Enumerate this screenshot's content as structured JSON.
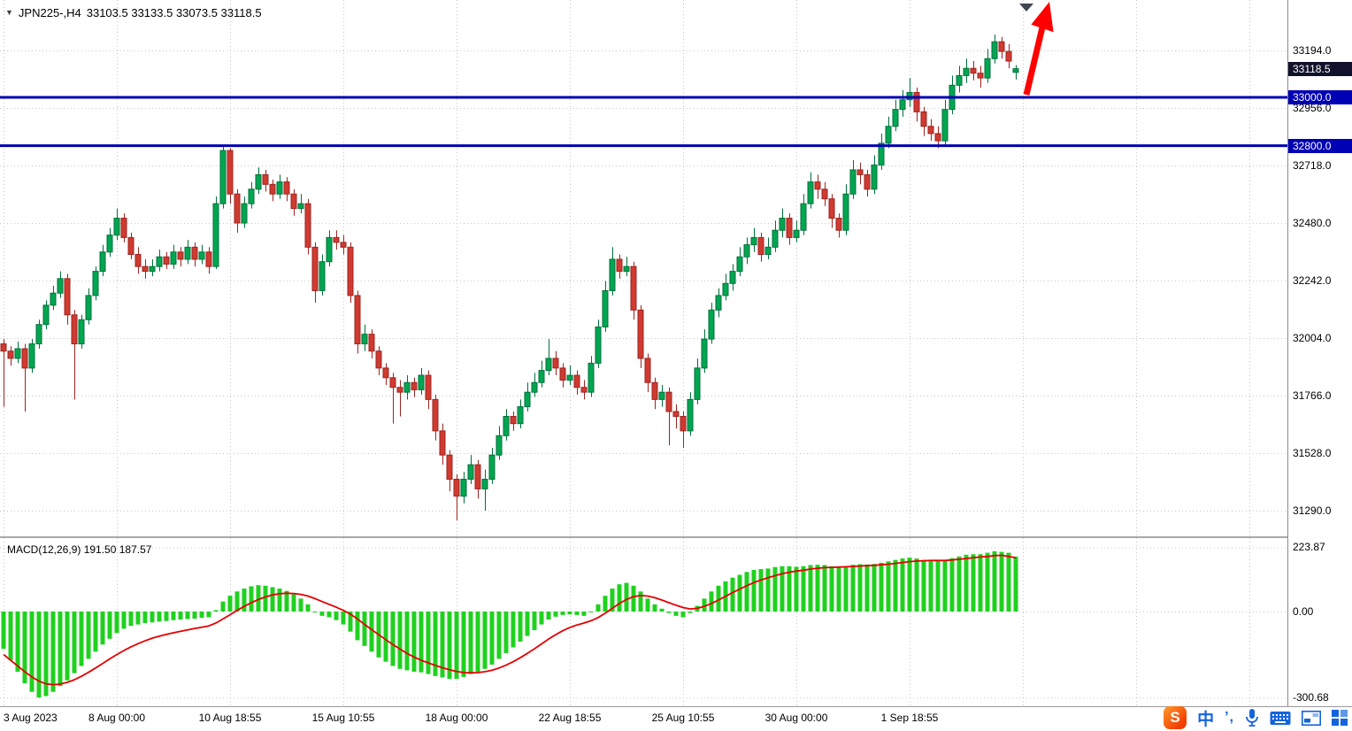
{
  "header": {
    "symbol_marker": "▼",
    "title": "JPN225-,H4",
    "ohlc_text": "33103.5 33133.5 33073.5 33118.5"
  },
  "price_scale": {
    "ticks": [
      "33194.0",
      "32956.0",
      "32718.0",
      "32480.0",
      "32242.0",
      "32004.0",
      "31766.0",
      "31528.0",
      "31290.0"
    ],
    "bid_tag": "33118.5",
    "level_tags": [
      "33000.0",
      "32800.0"
    ]
  },
  "macd_panel": {
    "label": "MACD(12,26,9) 191.50 187.57",
    "ticks": [
      {
        "text": "223.87",
        "value": 223.87
      },
      {
        "text": "0.00",
        "value": 0.0
      },
      {
        "text": "-300.68",
        "value": -300.68
      }
    ]
  },
  "time_axis": {
    "labels": [
      {
        "text": "3 Aug 2023",
        "bar": 0
      },
      {
        "text": "8 Aug 00:00",
        "bar": 16
      },
      {
        "text": "10 Aug 18:55",
        "bar": 32
      },
      {
        "text": "15 Aug 10:55",
        "bar": 48
      },
      {
        "text": "18 Aug 00:00",
        "bar": 64
      },
      {
        "text": "22 Aug 18:55",
        "bar": 80
      },
      {
        "text": "25 Aug 10:55",
        "bar": 96
      },
      {
        "text": "30 Aug 00:00",
        "bar": 112
      },
      {
        "text": "1 Sep 18:55",
        "bar": 128
      }
    ]
  },
  "annotations": {
    "trend_arrow": {
      "shape": "arrow-up-right",
      "color": "#ff0000"
    },
    "top_marker": "▼"
  },
  "colors": {
    "bull": "#00a651",
    "bull_border": "#00703a",
    "bear": "#d03a30",
    "bear_border": "#9c2420",
    "level_line": "#0000b4",
    "bid_tag_bg": "#11112b",
    "macd_hist": "#1fd11f",
    "macd_signal": "#e60000",
    "grid": "#c6c6cf",
    "arrow": "#ff0000"
  },
  "taskbar": {
    "icons": [
      {
        "name": "sogou-input",
        "glyph": "S"
      },
      {
        "name": "chinese-mode",
        "glyph": "中"
      },
      {
        "name": "punctuation-mode",
        "glyph": "’,"
      },
      {
        "name": "voice-input"
      },
      {
        "name": "soft-keyboard"
      },
      {
        "name": "toolbox"
      },
      {
        "name": "app-grid"
      }
    ]
  },
  "chart_data": {
    "type": "candlestick",
    "symbol": "JPN225-",
    "timeframe": "H4",
    "title": "JPN225-,H4 33103.5 33133.5 33073.5 33118.5",
    "last_bar": {
      "open": 33103.5,
      "high": 33133.5,
      "low": 33073.5,
      "close": 33118.5
    },
    "price_axis": {
      "top_tick": 33194.0,
      "tick_step": 238.0,
      "ticks": [
        33194.0,
        32956.0,
        32718.0,
        32480.0,
        32242.0,
        32004.0,
        31766.0,
        31528.0,
        31290.0
      ]
    },
    "levels": [
      33000.0,
      32800.0
    ],
    "candles": [
      [
        31980,
        32000,
        31720,
        31950
      ],
      [
        31950,
        31970,
        31890,
        31920
      ],
      [
        31920,
        31990,
        31900,
        31960
      ],
      [
        31960,
        31980,
        31700,
        31880
      ],
      [
        31880,
        32000,
        31860,
        31980
      ],
      [
        31980,
        32080,
        31960,
        32060
      ],
      [
        32060,
        32160,
        32040,
        32140
      ],
      [
        32140,
        32220,
        32120,
        32190
      ],
      [
        32190,
        32280,
        32170,
        32250
      ],
      [
        32250,
        32270,
        32060,
        32100
      ],
      [
        32100,
        32120,
        31750,
        31980
      ],
      [
        31980,
        32100,
        31960,
        32080
      ],
      [
        32080,
        32210,
        32060,
        32180
      ],
      [
        32180,
        32300,
        32160,
        32280
      ],
      [
        32280,
        32390,
        32260,
        32360
      ],
      [
        32360,
        32460,
        32340,
        32430
      ],
      [
        32430,
        32540,
        32410,
        32500
      ],
      [
        32500,
        32520,
        32400,
        32420
      ],
      [
        32420,
        32440,
        32330,
        32350
      ],
      [
        32350,
        32380,
        32270,
        32300
      ],
      [
        32300,
        32330,
        32250,
        32280
      ],
      [
        32280,
        32330,
        32260,
        32300
      ],
      [
        32300,
        32370,
        32280,
        32340
      ],
      [
        32340,
        32360,
        32290,
        32310
      ],
      [
        32310,
        32390,
        32290,
        32360
      ],
      [
        32360,
        32380,
        32300,
        32330
      ],
      [
        32330,
        32410,
        32310,
        32380
      ],
      [
        32380,
        32400,
        32300,
        32330
      ],
      [
        32330,
        32390,
        32310,
        32360
      ],
      [
        32360,
        32380,
        32270,
        32300
      ],
      [
        32300,
        32590,
        32290,
        32560
      ],
      [
        32560,
        32800,
        32540,
        32780
      ],
      [
        32780,
        32790,
        32560,
        32600
      ],
      [
        32600,
        32620,
        32440,
        32480
      ],
      [
        32480,
        32590,
        32460,
        32560
      ],
      [
        32560,
        32650,
        32540,
        32620
      ],
      [
        32620,
        32710,
        32600,
        32680
      ],
      [
        32680,
        32700,
        32610,
        32640
      ],
      [
        32640,
        32660,
        32570,
        32600
      ],
      [
        32600,
        32680,
        32580,
        32650
      ],
      [
        32650,
        32670,
        32570,
        32600
      ],
      [
        32600,
        32620,
        32510,
        32540
      ],
      [
        32540,
        32600,
        32520,
        32560
      ],
      [
        32560,
        32580,
        32350,
        32380
      ],
      [
        32380,
        32400,
        32150,
        32200
      ],
      [
        32200,
        32350,
        32180,
        32320
      ],
      [
        32320,
        32450,
        32300,
        32420
      ],
      [
        32420,
        32450,
        32370,
        32400
      ],
      [
        32400,
        32430,
        32350,
        32380
      ],
      [
        32380,
        32400,
        32150,
        32180
      ],
      [
        32180,
        32200,
        31940,
        31980
      ],
      [
        31980,
        32060,
        31950,
        32020
      ],
      [
        32020,
        32040,
        31920,
        31950
      ],
      [
        31950,
        31970,
        31850,
        31880
      ],
      [
        31880,
        31900,
        31810,
        31840
      ],
      [
        31840,
        31860,
        31650,
        31800
      ],
      [
        31800,
        31830,
        31680,
        31780
      ],
      [
        31780,
        31850,
        31750,
        31820
      ],
      [
        31820,
        31840,
        31760,
        31790
      ],
      [
        31790,
        31880,
        31770,
        31850
      ],
      [
        31850,
        31870,
        31710,
        31750
      ],
      [
        31750,
        31770,
        31580,
        31620
      ],
      [
        31620,
        31650,
        31480,
        31520
      ],
      [
        31520,
        31540,
        31370,
        31420
      ],
      [
        31420,
        31440,
        31250,
        31350
      ],
      [
        31350,
        31450,
        31320,
        31420
      ],
      [
        31420,
        31520,
        31400,
        31480
      ],
      [
        31480,
        31500,
        31340,
        31380
      ],
      [
        31380,
        31460,
        31290,
        31420
      ],
      [
        31420,
        31550,
        31400,
        31520
      ],
      [
        31520,
        31640,
        31500,
        31600
      ],
      [
        31600,
        31710,
        31580,
        31680
      ],
      [
        31680,
        31700,
        31620,
        31650
      ],
      [
        31650,
        31750,
        31630,
        31720
      ],
      [
        31720,
        31820,
        31700,
        31780
      ],
      [
        31780,
        31860,
        31760,
        31820
      ],
      [
        31820,
        31910,
        31800,
        31870
      ],
      [
        31870,
        32000,
        31850,
        31920
      ],
      [
        31920,
        31950,
        31850,
        31880
      ],
      [
        31880,
        31900,
        31800,
        31830
      ],
      [
        31830,
        31890,
        31810,
        31850
      ],
      [
        31850,
        31870,
        31770,
        31800
      ],
      [
        31800,
        31830,
        31750,
        31780
      ],
      [
        31780,
        31930,
        31760,
        31900
      ],
      [
        31900,
        32080,
        31880,
        32050
      ],
      [
        32050,
        32240,
        32030,
        32200
      ],
      [
        32200,
        32380,
        32180,
        32330
      ],
      [
        32330,
        32350,
        32250,
        32280
      ],
      [
        32280,
        32340,
        32260,
        32300
      ],
      [
        32300,
        32320,
        32080,
        32120
      ],
      [
        32120,
        32140,
        31880,
        31920
      ],
      [
        31920,
        31940,
        31780,
        31820
      ],
      [
        31820,
        31840,
        31710,
        31750
      ],
      [
        31750,
        31810,
        31720,
        31780
      ],
      [
        31780,
        31800,
        31560,
        31700
      ],
      [
        31700,
        31730,
        31630,
        31680
      ],
      [
        31680,
        31700,
        31550,
        31620
      ],
      [
        31620,
        31780,
        31600,
        31750
      ],
      [
        31750,
        31920,
        31730,
        31880
      ],
      [
        31880,
        32040,
        31860,
        32000
      ],
      [
        32000,
        32150,
        31980,
        32120
      ],
      [
        32120,
        32210,
        32090,
        32180
      ],
      [
        32180,
        32270,
        32160,
        32230
      ],
      [
        32230,
        32310,
        32200,
        32280
      ],
      [
        32280,
        32380,
        32260,
        32340
      ],
      [
        32340,
        32420,
        32310,
        32390
      ],
      [
        32390,
        32460,
        32360,
        32420
      ],
      [
        32420,
        32440,
        32320,
        32350
      ],
      [
        32350,
        32420,
        32330,
        32380
      ],
      [
        32380,
        32490,
        32360,
        32450
      ],
      [
        32450,
        32540,
        32420,
        32500
      ],
      [
        32500,
        32520,
        32390,
        32420
      ],
      [
        32420,
        32490,
        32400,
        32450
      ],
      [
        32450,
        32600,
        32430,
        32560
      ],
      [
        32560,
        32690,
        32540,
        32650
      ],
      [
        32650,
        32680,
        32580,
        32620
      ],
      [
        32620,
        32650,
        32550,
        32580
      ],
      [
        32580,
        32600,
        32460,
        32500
      ],
      [
        32500,
        32520,
        32420,
        32450
      ],
      [
        32450,
        32640,
        32430,
        32600
      ],
      [
        32600,
        32740,
        32580,
        32700
      ],
      [
        32700,
        32730,
        32640,
        32680
      ],
      [
        32680,
        32700,
        32590,
        32620
      ],
      [
        32620,
        32760,
        32600,
        32720
      ],
      [
        32720,
        32850,
        32700,
        32810
      ],
      [
        32810,
        32920,
        32790,
        32880
      ],
      [
        32880,
        32990,
        32860,
        32950
      ],
      [
        32950,
        33030,
        32920,
        32990
      ],
      [
        32990,
        33080,
        32960,
        33020
      ],
      [
        33020,
        33040,
        32900,
        32940
      ],
      [
        32940,
        32960,
        32840,
        32880
      ],
      [
        32880,
        32910,
        32820,
        32850
      ],
      [
        32850,
        32880,
        32790,
        32820
      ],
      [
        32820,
        32990,
        32800,
        32950
      ],
      [
        32950,
        33090,
        32930,
        33050
      ],
      [
        33050,
        33130,
        33020,
        33090
      ],
      [
        33090,
        33160,
        33060,
        33120
      ],
      [
        33120,
        33150,
        33070,
        33100
      ],
      [
        33100,
        33130,
        33040,
        33080
      ],
      [
        33080,
        33200,
        33060,
        33160
      ],
      [
        33160,
        33260,
        33140,
        33230
      ],
      [
        33230,
        33250,
        33160,
        33190
      ],
      [
        33190,
        33220,
        33120,
        33150
      ],
      [
        33103.5,
        33133.5,
        33073.5,
        33118.5
      ]
    ],
    "macd": {
      "params": [
        12,
        26,
        9
      ],
      "main_last": 191.5,
      "signal_last": 187.57,
      "axis": {
        "max": 223.87,
        "zero": 0.0,
        "min": -300.68
      },
      "histogram": [
        -130,
        -170,
        -210,
        -250,
        -280,
        -300,
        -295,
        -280,
        -260,
        -240,
        -215,
        -190,
        -165,
        -140,
        -115,
        -95,
        -75,
        -60,
        -50,
        -45,
        -40,
        -38,
        -35,
        -33,
        -30,
        -28,
        -26,
        -25,
        -22,
        -20,
        5,
        35,
        55,
        70,
        80,
        88,
        92,
        90,
        85,
        80,
        72,
        60,
        45,
        25,
        0,
        -15,
        -20,
        -30,
        -45,
        -70,
        -100,
        -120,
        -140,
        -160,
        -175,
        -190,
        -200,
        -205,
        -210,
        -212,
        -218,
        -225,
        -230,
        -235,
        -235,
        -228,
        -218,
        -210,
        -200,
        -185,
        -165,
        -145,
        -125,
        -105,
        -85,
        -65,
        -45,
        -28,
        -18,
        -12,
        -10,
        -12,
        -15,
        0,
        25,
        55,
        80,
        95,
        100,
        90,
        70,
        45,
        25,
        10,
        -5,
        -15,
        -20,
        -5,
        20,
        45,
        70,
        90,
        105,
        118,
        128,
        138,
        145,
        148,
        150,
        155,
        158,
        158,
        156,
        158,
        162,
        163,
        162,
        158,
        155,
        158,
        163,
        165,
        164,
        166,
        170,
        175,
        180,
        185,
        188,
        185,
        180,
        178,
        176,
        180,
        186,
        192,
        198,
        200,
        200,
        205,
        210,
        208,
        205,
        191.5
      ],
      "signal": [
        -150,
        -170,
        -190,
        -210,
        -228,
        -243,
        -252,
        -255,
        -253,
        -247,
        -238,
        -226,
        -212,
        -197,
        -181,
        -165,
        -150,
        -136,
        -123,
        -112,
        -102,
        -93,
        -86,
        -80,
        -74,
        -69,
        -64,
        -59,
        -55,
        -50,
        -40,
        -26,
        -11,
        4,
        18,
        31,
        42,
        51,
        58,
        62,
        64,
        63,
        60,
        54,
        45,
        35,
        25,
        15,
        4,
        -9,
        -26,
        -45,
        -63,
        -81,
        -98,
        -115,
        -131,
        -146,
        -159,
        -170,
        -179,
        -188,
        -196,
        -203,
        -209,
        -213,
        -214,
        -213,
        -210,
        -205,
        -197,
        -187,
        -175,
        -161,
        -146,
        -130,
        -113,
        -96,
        -81,
        -67,
        -56,
        -47,
        -40,
        -32,
        -21,
        -6,
        11,
        28,
        42,
        52,
        56,
        54,
        48,
        40,
        31,
        22,
        14,
        9,
        11,
        18,
        28,
        40,
        53,
        66,
        78,
        90,
        101,
        110,
        118,
        125,
        132,
        137,
        141,
        144,
        148,
        151,
        153,
        154,
        155,
        156,
        157,
        159,
        160,
        161,
        163,
        165,
        168,
        171,
        174,
        176,
        177,
        178,
        178,
        178,
        180,
        182,
        185,
        188,
        190,
        192,
        195,
        196,
        192,
        187.57
      ]
    }
  }
}
